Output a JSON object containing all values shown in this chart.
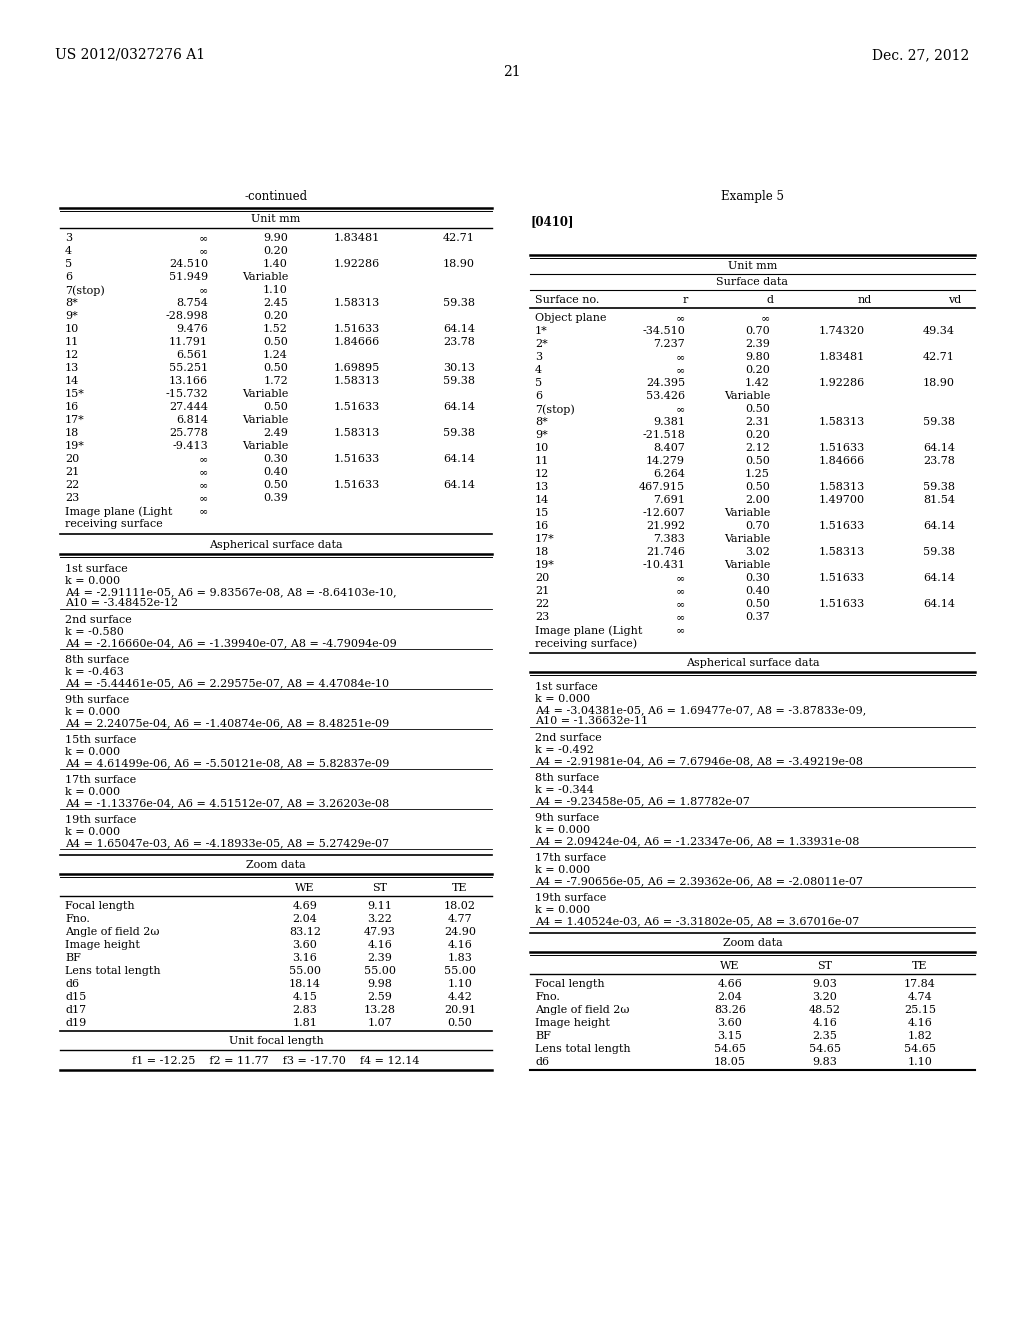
{
  "page_header_left": "US 2012/0327276 A1",
  "page_header_right": "Dec. 27, 2012",
  "page_number": "21",
  "left_section_title": "-continued",
  "left_unit": "Unit mm",
  "left_table_data": [
    [
      "3",
      "∞",
      "9.90",
      "1.83481",
      "42.71"
    ],
    [
      "4",
      "∞",
      "0.20",
      "",
      ""
    ],
    [
      "5",
      "24.510",
      "1.40",
      "1.92286",
      "18.90"
    ],
    [
      "6",
      "51.949",
      "Variable",
      "",
      ""
    ],
    [
      "7(stop)",
      "∞",
      "1.10",
      "",
      ""
    ],
    [
      "8*",
      "8.754",
      "2.45",
      "1.58313",
      "59.38"
    ],
    [
      "9*",
      "-28.998",
      "0.20",
      "",
      ""
    ],
    [
      "10",
      "9.476",
      "1.52",
      "1.51633",
      "64.14"
    ],
    [
      "11",
      "11.791",
      "0.50",
      "1.84666",
      "23.78"
    ],
    [
      "12",
      "6.561",
      "1.24",
      "",
      ""
    ],
    [
      "13",
      "55.251",
      "0.50",
      "1.69895",
      "30.13"
    ],
    [
      "14",
      "13.166",
      "1.72",
      "1.58313",
      "59.38"
    ],
    [
      "15*",
      "-15.732",
      "Variable",
      "",
      ""
    ],
    [
      "16",
      "27.444",
      "0.50",
      "1.51633",
      "64.14"
    ],
    [
      "17*",
      "6.814",
      "Variable",
      "",
      ""
    ],
    [
      "18",
      "25.778",
      "2.49",
      "1.58313",
      "59.38"
    ],
    [
      "19*",
      "-9.413",
      "Variable",
      "",
      ""
    ],
    [
      "20",
      "∞",
      "0.30",
      "1.51633",
      "64.14"
    ],
    [
      "21",
      "∞",
      "0.40",
      "",
      ""
    ],
    [
      "22",
      "∞",
      "0.50",
      "1.51633",
      "64.14"
    ],
    [
      "23",
      "∞",
      "0.39",
      "",
      ""
    ],
    [
      "Image plane (Light",
      "∞",
      "",
      "",
      ""
    ],
    [
      "receiving surface",
      "",
      "",
      "",
      ""
    ]
  ],
  "left_asph_title": "Aspherical surface data",
  "left_asph_data": [
    [
      "1st surface",
      "k = 0.000\nA4 = -2.91111e-05, A6 = 9.83567e-08, A8 = -8.64103e-10,\nA10 = -3.48452e-12"
    ],
    [
      "2nd surface",
      "k = -0.580\nA4 = -2.16660e-04, A6 = -1.39940e-07, A8 = -4.79094e-09"
    ],
    [
      "8th surface",
      "k = -0.463\nA4 = -5.44461e-05, A6 = 2.29575e-07, A8 = 4.47084e-10"
    ],
    [
      "9th surface",
      "k = 0.000\nA4 = 2.24075e-04, A6 = -1.40874e-06, A8 = 8.48251e-09"
    ],
    [
      "15th surface",
      "k = 0.000\nA4 = 4.61499e-06, A6 = -5.50121e-08, A8 = 5.82837e-09"
    ],
    [
      "17th surface",
      "k = 0.000\nA4 = -1.13376e-04, A6 = 4.51512e-07, A8 = 3.26203e-08"
    ],
    [
      "19th surface",
      "k = 0.000\nA4 = 1.65047e-03, A6 = -4.18933e-05, A8 = 5.27429e-07"
    ]
  ],
  "left_zoom_title": "Zoom data",
  "left_zoom_headers": [
    "",
    "WE",
    "ST",
    "TE"
  ],
  "left_zoom_rows": [
    [
      "Focal length",
      "4.69",
      "9.11",
      "18.02"
    ],
    [
      "Fno.",
      "2.04",
      "3.22",
      "4.77"
    ],
    [
      "Angle of field 2ω",
      "83.12",
      "47.93",
      "24.90"
    ],
    [
      "Image height",
      "3.60",
      "4.16",
      "4.16"
    ],
    [
      "BF",
      "3.16",
      "2.39",
      "1.83"
    ],
    [
      "Lens total length",
      "55.00",
      "55.00",
      "55.00"
    ],
    [
      "d6",
      "18.14",
      "9.98",
      "1.10"
    ],
    [
      "d15",
      "4.15",
      "2.59",
      "4.42"
    ],
    [
      "d17",
      "2.83",
      "13.28",
      "20.91"
    ],
    [
      "d19",
      "1.81",
      "1.07",
      "0.50"
    ]
  ],
  "left_focal_title": "Unit focal length",
  "left_focal_data": "f1 = -12.25    f2 = 11.77    f3 = -17.70    f4 = 12.14",
  "right_section_title": "Example 5",
  "right_patent_ref": "[0410]",
  "right_unit": "Unit mm",
  "right_surface_title": "Surface data",
  "right_table_headers": [
    "Surface no.",
    "r",
    "d",
    "nd",
    "vd"
  ],
  "right_table_data": [
    [
      "Object plane",
      "∞",
      "∞",
      "",
      ""
    ],
    [
      "1*",
      "-34.510",
      "0.70",
      "1.74320",
      "49.34"
    ],
    [
      "2*",
      "7.237",
      "2.39",
      "",
      ""
    ],
    [
      "3",
      "∞",
      "9.80",
      "1.83481",
      "42.71"
    ],
    [
      "4",
      "∞",
      "0.20",
      "",
      ""
    ],
    [
      "5",
      "24.395",
      "1.42",
      "1.92286",
      "18.90"
    ],
    [
      "6",
      "53.426",
      "Variable",
      "",
      ""
    ],
    [
      "7(stop)",
      "∞",
      "0.50",
      "",
      ""
    ],
    [
      "8*",
      "9.381",
      "2.31",
      "1.58313",
      "59.38"
    ],
    [
      "9*",
      "-21.518",
      "0.20",
      "",
      ""
    ],
    [
      "10",
      "8.407",
      "2.12",
      "1.51633",
      "64.14"
    ],
    [
      "11",
      "14.279",
      "0.50",
      "1.84666",
      "23.78"
    ],
    [
      "12",
      "6.264",
      "1.25",
      "",
      ""
    ],
    [
      "13",
      "467.915",
      "0.50",
      "1.58313",
      "59.38"
    ],
    [
      "14",
      "7.691",
      "2.00",
      "1.49700",
      "81.54"
    ],
    [
      "15",
      "-12.607",
      "Variable",
      "",
      ""
    ],
    [
      "16",
      "21.992",
      "0.70",
      "1.51633",
      "64.14"
    ],
    [
      "17*",
      "7.383",
      "Variable",
      "",
      ""
    ],
    [
      "18",
      "21.746",
      "3.02",
      "1.58313",
      "59.38"
    ],
    [
      "19*",
      "-10.431",
      "Variable",
      "",
      ""
    ],
    [
      "20",
      "∞",
      "0.30",
      "1.51633",
      "64.14"
    ],
    [
      "21",
      "∞",
      "0.40",
      "",
      ""
    ],
    [
      "22",
      "∞",
      "0.50",
      "1.51633",
      "64.14"
    ],
    [
      "23",
      "∞",
      "0.37",
      "",
      ""
    ],
    [
      "Image plane (Light",
      "∞",
      "",
      "",
      ""
    ],
    [
      "receiving surface)",
      "",
      "",
      "",
      ""
    ]
  ],
  "right_asph_title": "Aspherical surface data",
  "right_asph_data": [
    [
      "1st surface",
      "k = 0.000\nA4 = -3.04381e-05, A6 = 1.69477e-07, A8 = -3.87833e-09,\nA10 = -1.36632e-11"
    ],
    [
      "2nd surface",
      "k = -0.492\nA4 = -2.91981e-04, A6 = 7.67946e-08, A8 = -3.49219e-08"
    ],
    [
      "8th surface",
      "k = -0.344\nA4 = -9.23458e-05, A6 = 1.87782e-07"
    ],
    [
      "9th surface",
      "k = 0.000\nA4 = 2.09424e-04, A6 = -1.23347e-06, A8 = 1.33931e-08"
    ],
    [
      "17th surface",
      "k = 0.000\nA4 = -7.90656e-05, A6 = 2.39362e-06, A8 = -2.08011e-07"
    ],
    [
      "19th surface",
      "k = 0.000\nA4 = 1.40524e-03, A6 = -3.31802e-05, A8 = 3.67016e-07"
    ]
  ],
  "right_zoom_title": "Zoom data",
  "right_zoom_headers": [
    "",
    "WE",
    "ST",
    "TE"
  ],
  "right_zoom_rows": [
    [
      "Focal length",
      "4.66",
      "9.03",
      "17.84"
    ],
    [
      "Fno.",
      "2.04",
      "3.20",
      "4.74"
    ],
    [
      "Angle of field 2ω",
      "83.26",
      "48.52",
      "25.15"
    ],
    [
      "Image height",
      "3.60",
      "4.16",
      "4.16"
    ],
    [
      "BF",
      "3.15",
      "2.35",
      "1.82"
    ],
    [
      "Lens total length",
      "54.65",
      "54.65",
      "54.65"
    ],
    [
      "d6",
      "18.05",
      "9.83",
      "1.10"
    ]
  ]
}
